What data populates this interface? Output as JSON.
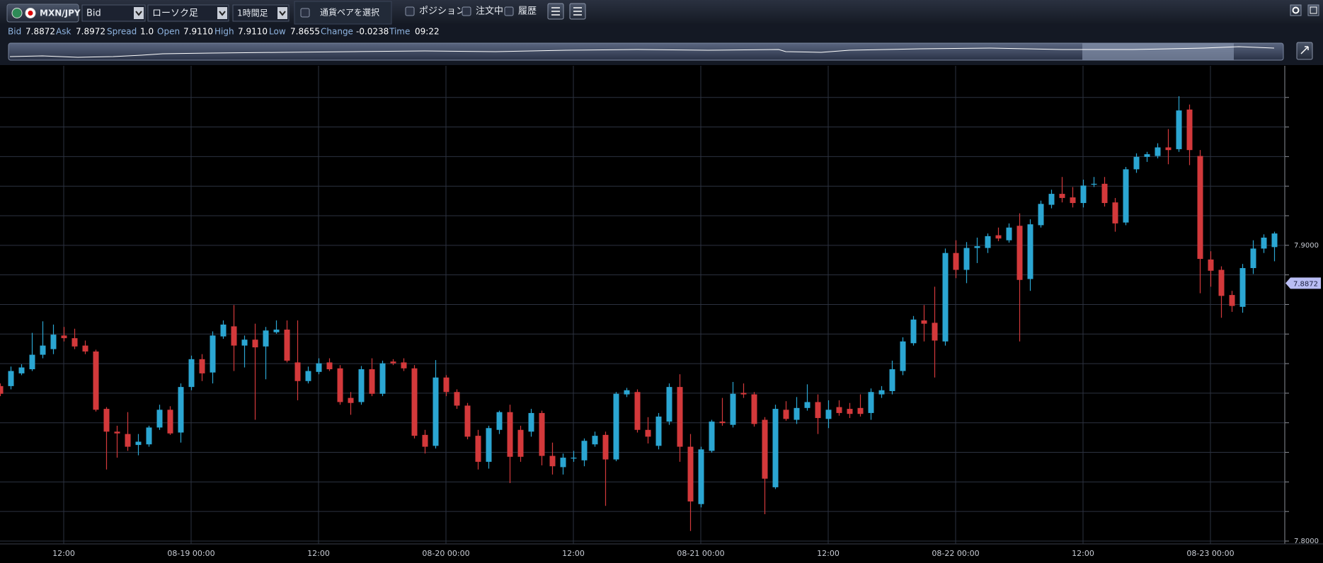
{
  "toolbar": {
    "pair": "MXN/JPY",
    "price_type": "Bid",
    "chart_type": "ローソク足",
    "timeframe": "1時間足",
    "select_pair": "通貨ペアを選択",
    "toggles": [
      "ポジション",
      "注文中",
      "履歴"
    ]
  },
  "quote": {
    "labels": [
      "Bid",
      "Ask",
      "Spread",
      "Open",
      "High",
      "Low",
      "Change",
      "Time"
    ],
    "values": [
      "7.8872",
      "7.8972",
      "1.0",
      "7.9110",
      "7.9110",
      "7.8655",
      "-0.0238",
      "09:22"
    ]
  },
  "chart_data": {
    "type": "candlestick",
    "up_color": "#2ba6d2",
    "down_color": "#d3393b",
    "grid": true,
    "ylim": [
      7.8,
      7.9607
    ],
    "yticks": [
      {
        "value": 7.8,
        "label": "7.8000"
      },
      {
        "value": 7.9,
        "label": "7.9000"
      }
    ],
    "ygrid": [
      7.81,
      7.82,
      7.83,
      7.84,
      7.85,
      7.86,
      7.87,
      7.88,
      7.89,
      7.91,
      7.92,
      7.93,
      7.94,
      7.95
    ],
    "last_price": {
      "value": 7.8872,
      "label": "7.8872"
    },
    "categories": [
      null,
      null,
      null,
      null,
      null,
      null,
      "12:00",
      null,
      null,
      null,
      null,
      null,
      null,
      null,
      null,
      null,
      null,
      null,
      "08-19 00:00",
      null,
      null,
      null,
      null,
      null,
      null,
      null,
      null,
      null,
      null,
      null,
      "12:00",
      null,
      null,
      null,
      null,
      null,
      null,
      null,
      null,
      null,
      null,
      null,
      "08-20 00:00",
      null,
      null,
      null,
      null,
      null,
      null,
      null,
      null,
      null,
      null,
      null,
      "12:00",
      null,
      null,
      null,
      null,
      null,
      null,
      null,
      null,
      null,
      null,
      null,
      "08-21 00:00",
      null,
      null,
      null,
      null,
      null,
      null,
      null,
      null,
      null,
      null,
      null,
      "12:00",
      null,
      null,
      null,
      null,
      null,
      null,
      null,
      null,
      null,
      null,
      null,
      "08-22 00:00",
      null,
      null,
      null,
      null,
      null,
      null,
      null,
      null,
      null,
      null,
      null,
      "12:00",
      null,
      null,
      null,
      null,
      null,
      null,
      null,
      null,
      null,
      null,
      null,
      "08-23 00:00",
      null,
      null,
      null,
      null,
      null,
      null
    ],
    "ohlc": [
      [
        7.8524,
        7.8533,
        7.849,
        7.8498
      ],
      [
        7.8524,
        7.859,
        7.8513,
        7.8575
      ],
      [
        7.8567,
        7.8598,
        7.8561,
        7.8587
      ],
      [
        7.8581,
        7.8704,
        7.8575,
        7.863
      ],
      [
        7.863,
        7.8743,
        7.8618,
        7.8661
      ],
      [
        7.8649,
        7.8732,
        7.8632,
        7.8698
      ],
      [
        7.8695,
        7.8724,
        7.8675,
        7.8686
      ],
      [
        7.8686,
        7.8718,
        7.8649,
        7.8658
      ],
      [
        7.8661,
        7.8678,
        7.8632,
        7.8641
      ],
      [
        7.8641,
        7.8647,
        7.8438,
        7.8444
      ],
      [
        7.8447,
        7.8453,
        7.8242,
        7.837
      ],
      [
        7.837,
        7.839,
        7.8282,
        7.8364
      ],
      [
        7.8362,
        7.8436,
        7.8305,
        7.8319
      ],
      [
        7.8325,
        7.8362,
        7.829,
        7.8336
      ],
      [
        7.8327,
        7.839,
        7.8319,
        7.8384
      ],
      [
        7.8384,
        7.8461,
        7.8376,
        7.8444
      ],
      [
        7.8444,
        7.8456,
        7.8359,
        7.8364
      ],
      [
        7.8367,
        7.8533,
        7.8333,
        7.8521
      ],
      [
        7.8521,
        7.8627,
        7.851,
        7.8615
      ],
      [
        7.8615,
        7.8632,
        7.8541,
        7.8567
      ],
      [
        7.857,
        7.8709,
        7.8533,
        7.8695
      ],
      [
        7.8692,
        7.8746,
        7.8684,
        7.8732
      ],
      [
        7.8726,
        7.8798,
        7.8575,
        7.8661
      ],
      [
        7.8661,
        7.8695,
        7.8587,
        7.8681
      ],
      [
        7.8681,
        7.8735,
        7.841,
        7.8655
      ],
      [
        7.8658,
        7.8724,
        7.8547,
        7.8712
      ],
      [
        7.8706,
        7.8746,
        7.8701,
        7.8715
      ],
      [
        7.8715,
        7.8746,
        7.8604,
        7.861
      ],
      [
        7.8604,
        7.8746,
        7.8476,
        7.8541
      ],
      [
        7.8541,
        7.859,
        7.8533,
        7.8575
      ],
      [
        7.8572,
        7.8618,
        7.8564,
        7.8601
      ],
      [
        7.8604,
        7.8618,
        7.8575,
        7.8581
      ],
      [
        7.8584,
        7.8595,
        7.8461,
        7.847
      ],
      [
        7.8484,
        7.8504,
        7.8427,
        7.8467
      ],
      [
        7.847,
        7.8592,
        7.8461,
        7.8581
      ],
      [
        7.8581,
        7.8618,
        7.849,
        7.8498
      ],
      [
        7.8498,
        7.861,
        7.849,
        7.8601
      ],
      [
        7.8607,
        7.8615,
        7.8595,
        7.8601
      ],
      [
        7.8604,
        7.8618,
        7.8575,
        7.8584
      ],
      [
        7.8584,
        7.8595,
        7.8347,
        7.8356
      ],
      [
        7.8359,
        7.8376,
        7.8296,
        7.8319
      ],
      [
        7.8322,
        7.8612,
        7.8313,
        7.8553
      ],
      [
        7.8553,
        7.8561,
        7.849,
        7.8504
      ],
      [
        7.8504,
        7.8513,
        7.8447,
        7.8458
      ],
      [
        7.8458,
        7.8467,
        7.8344,
        7.8353
      ],
      [
        7.8356,
        7.8376,
        7.8242,
        7.8268
      ],
      [
        7.8268,
        7.839,
        7.8245,
        7.8382
      ],
      [
        7.8376,
        7.8441,
        7.8362,
        7.8436
      ],
      [
        7.8436,
        7.8461,
        7.8196,
        7.8285
      ],
      [
        7.8376,
        7.839,
        7.8268,
        7.8285
      ],
      [
        7.837,
        7.8447,
        7.8353,
        7.8433
      ],
      [
        7.8433,
        7.8441,
        7.8256,
        7.8288
      ],
      [
        7.8288,
        7.8333,
        7.8225,
        7.8253
      ],
      [
        7.825,
        7.8296,
        7.8225,
        7.8282
      ],
      [
        7.8279,
        7.8305,
        7.8268,
        7.8282
      ],
      [
        7.8273,
        7.8347,
        7.8253,
        7.8339
      ],
      [
        7.8327,
        7.837,
        7.8319,
        7.8356
      ],
      [
        7.8359,
        7.837,
        7.8119,
        7.8276
      ],
      [
        7.8276,
        7.8504,
        7.827,
        7.8498
      ],
      [
        7.8496,
        7.8518,
        7.8487,
        7.851
      ],
      [
        7.8504,
        7.8513,
        7.8367,
        7.8376
      ],
      [
        7.8376,
        7.8419,
        7.833,
        7.8353
      ],
      [
        7.8322,
        7.8433,
        7.831,
        7.8421
      ],
      [
        7.8404,
        7.8533,
        7.8393,
        7.8521
      ],
      [
        7.8521,
        7.8564,
        7.8268,
        7.8319
      ],
      [
        7.8319,
        7.8362,
        7.8034,
        7.8134
      ],
      [
        7.8125,
        7.8319,
        7.8114,
        7.831
      ],
      [
        7.8305,
        7.841,
        7.8299,
        7.8404
      ],
      [
        7.8404,
        7.8484,
        7.839,
        7.8399
      ],
      [
        7.8393,
        7.8538,
        7.8384,
        7.8498
      ],
      [
        7.8501,
        7.8533,
        7.8484,
        7.8496
      ],
      [
        7.8496,
        7.8504,
        7.8387,
        7.8396
      ],
      [
        7.841,
        7.8419,
        7.8091,
        7.8211
      ],
      [
        7.8182,
        7.8461,
        7.8176,
        7.8447
      ],
      [
        7.8444,
        7.8473,
        7.8407,
        7.8413
      ],
      [
        7.841,
        7.8487,
        7.8396,
        7.845
      ],
      [
        7.845,
        7.853,
        7.8441,
        7.847
      ],
      [
        7.847,
        7.8496,
        7.8362,
        7.8416
      ],
      [
        7.8413,
        7.8476,
        7.8382,
        7.8444
      ],
      [
        7.8453,
        7.8476,
        7.8424,
        7.8433
      ],
      [
        7.8447,
        7.8467,
        7.8416,
        7.843
      ],
      [
        7.845,
        7.8496,
        7.8421,
        7.843
      ],
      [
        7.8433,
        7.8516,
        7.841,
        7.8504
      ],
      [
        7.8496,
        7.8524,
        7.8484,
        7.851
      ],
      [
        7.8507,
        7.861,
        7.8496,
        7.8581
      ],
      [
        7.8575,
        7.8689,
        7.8561,
        7.8675
      ],
      [
        7.8669,
        7.8761,
        7.8661,
        7.8749
      ],
      [
        7.8746,
        7.8798,
        7.8675,
        7.8735
      ],
      [
        7.8738,
        7.886,
        7.8553,
        7.8678
      ],
      [
        7.8675,
        7.8989,
        7.8661,
        7.8974
      ],
      [
        7.8974,
        7.9017,
        7.8889,
        7.8917
      ],
      [
        7.8917,
        7.9011,
        7.8872,
        7.8991
      ],
      [
        7.8991,
        7.9026,
        7.894,
        7.8997
      ],
      [
        7.8991,
        7.904,
        7.8974,
        7.9031
      ],
      [
        7.9034,
        7.906,
        7.9014,
        7.9023
      ],
      [
        7.9017,
        7.9074,
        7.9009,
        7.906
      ],
      [
        7.9066,
        7.9108,
        7.8675,
        7.8883
      ],
      [
        7.8886,
        7.9088,
        7.8846,
        7.9071
      ],
      [
        7.9068,
        7.9151,
        7.906,
        7.914
      ],
      [
        7.9137,
        7.9188,
        7.9125,
        7.9174
      ],
      [
        7.9174,
        7.9231,
        7.9145,
        7.916
      ],
      [
        7.9162,
        7.9197,
        7.9128,
        7.9143
      ],
      [
        7.9143,
        7.9222,
        7.9128,
        7.9202
      ],
      [
        7.9205,
        7.9231,
        7.9197,
        7.9208
      ],
      [
        7.9208,
        7.9231,
        7.9131,
        7.9143
      ],
      [
        7.9145,
        7.916,
        7.9046,
        7.9074
      ],
      [
        7.9077,
        7.9265,
        7.9068,
        7.9257
      ],
      [
        7.9257,
        7.9311,
        7.9245,
        7.9299
      ],
      [
        7.9299,
        7.9316,
        7.9282,
        7.9308
      ],
      [
        7.9302,
        7.9345,
        7.9294,
        7.9331
      ],
      [
        7.9331,
        7.9393,
        7.9274,
        7.9322
      ],
      [
        7.9325,
        7.9504,
        7.9316,
        7.9456
      ],
      [
        7.9459,
        7.9476,
        7.9271,
        7.9322
      ],
      [
        7.9302,
        7.9322,
        7.8838,
        7.8954
      ],
      [
        7.8952,
        7.898,
        7.886,
        7.8914
      ],
      [
        7.8917,
        7.8929,
        7.8755,
        7.8829
      ],
      [
        7.8832,
        7.8846,
        7.8775,
        7.8795
      ],
      [
        7.8792,
        7.8937,
        7.8772,
        7.8923
      ],
      [
        7.8923,
        7.9017,
        7.8903,
        7.8989
      ],
      [
        7.8989,
        7.9037,
        7.8974,
        7.9026
      ],
      [
        7.8994,
        7.9046,
        7.8946,
        7.904
      ]
    ]
  }
}
